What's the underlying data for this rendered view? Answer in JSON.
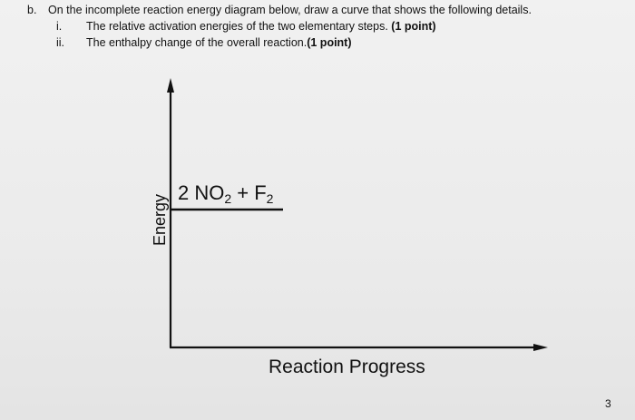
{
  "question": {
    "part_marker": "b.",
    "intro": "On the incomplete reaction energy diagram below, draw a curve that shows the following details.",
    "items": [
      {
        "marker": "i.",
        "text": "The relative activation energies of the two elementary steps. ",
        "points": "(1 point)"
      },
      {
        "marker": "ii.",
        "text": "The enthalpy change of the overall reaction.",
        "points": "(1 point)"
      }
    ]
  },
  "diagram": {
    "y_axis_label": "Energy",
    "x_axis_label": "Reaction Progress",
    "reactants": {
      "coef": "2 NO",
      "sub1": "2",
      "plus": " + F",
      "sub2": "2"
    }
  },
  "footer": {
    "page_number": "3"
  }
}
